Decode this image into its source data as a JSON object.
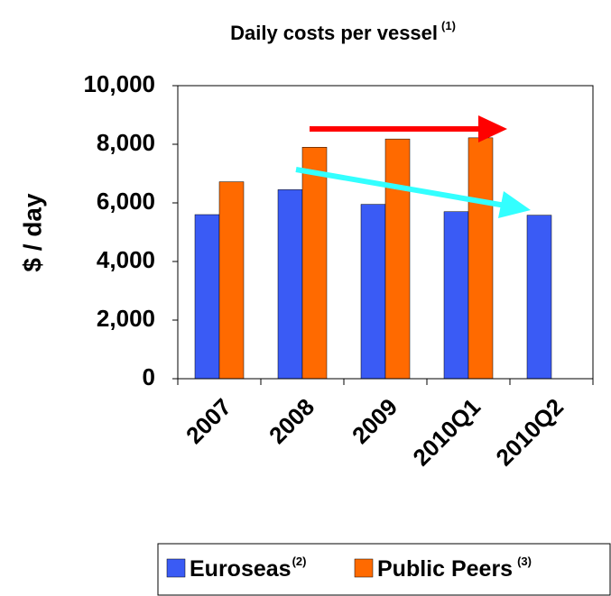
{
  "chart_data": {
    "type": "bar",
    "title": "Daily costs per vessel",
    "title_note": "(1)",
    "y_label": "$ / day",
    "categories": [
      "2007",
      "2008",
      "2009",
      "2010Q1",
      "2010Q2"
    ],
    "series": [
      {
        "name": "Euroseas",
        "note": "(2)",
        "color": "#3a5bf5",
        "values": [
          5600,
          6450,
          5950,
          5700,
          5580
        ]
      },
      {
        "name": "Public Peers",
        "note": "(3)",
        "color": "#ff6a00",
        "values": [
          6720,
          7900,
          8180,
          8220,
          null
        ]
      }
    ],
    "ylim": [
      0,
      10000
    ],
    "yticks": [
      {
        "value": 0,
        "label": "0"
      },
      {
        "value": 2000,
        "label": "2,000"
      },
      {
        "value": 4000,
        "label": "4,000"
      },
      {
        "value": 6000,
        "label": "6,000"
      },
      {
        "value": 8000,
        "label": "8,000"
      },
      {
        "value": 10000,
        "label": "10,000"
      }
    ],
    "grid": false
  }
}
